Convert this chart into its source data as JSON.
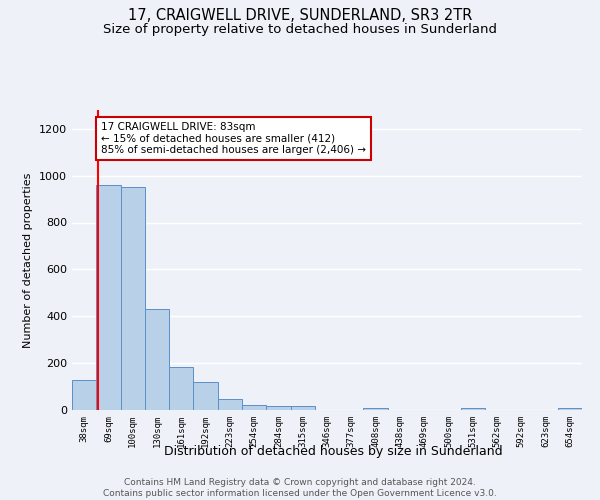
{
  "title": "17, CRAIGWELL DRIVE, SUNDERLAND, SR3 2TR",
  "subtitle": "Size of property relative to detached houses in Sunderland",
  "xlabel": "Distribution of detached houses by size in Sunderland",
  "ylabel": "Number of detached properties",
  "categories": [
    "38sqm",
    "69sqm",
    "100sqm",
    "130sqm",
    "161sqm",
    "192sqm",
    "223sqm",
    "254sqm",
    "284sqm",
    "315sqm",
    "346sqm",
    "377sqm",
    "408sqm",
    "438sqm",
    "469sqm",
    "500sqm",
    "531sqm",
    "562sqm",
    "592sqm",
    "623sqm",
    "654sqm"
  ],
  "bar_heights": [
    130,
    960,
    950,
    430,
    185,
    120,
    45,
    20,
    15,
    15,
    0,
    0,
    10,
    0,
    0,
    0,
    10,
    0,
    0,
    0,
    10
  ],
  "bar_color": "#b8d0e8",
  "bar_edge_color": "#5b8fc9",
  "red_line_x": 0.57,
  "annotation_text": "17 CRAIGWELL DRIVE: 83sqm\n← 15% of detached houses are smaller (412)\n85% of semi-detached houses are larger (2,406) →",
  "annotation_box_color": "#ffffff",
  "annotation_box_edge": "#cc0000",
  "footer": "Contains HM Land Registry data © Crown copyright and database right 2024.\nContains public sector information licensed under the Open Government Licence v3.0.",
  "background_color": "#eef2f8",
  "ylim": [
    0,
    1280
  ],
  "yticks": [
    0,
    200,
    400,
    600,
    800,
    1000,
    1200
  ],
  "grid_color": "#ffffff",
  "title_fontsize": 10.5,
  "subtitle_fontsize": 9.5,
  "footer_fontsize": 6.5
}
